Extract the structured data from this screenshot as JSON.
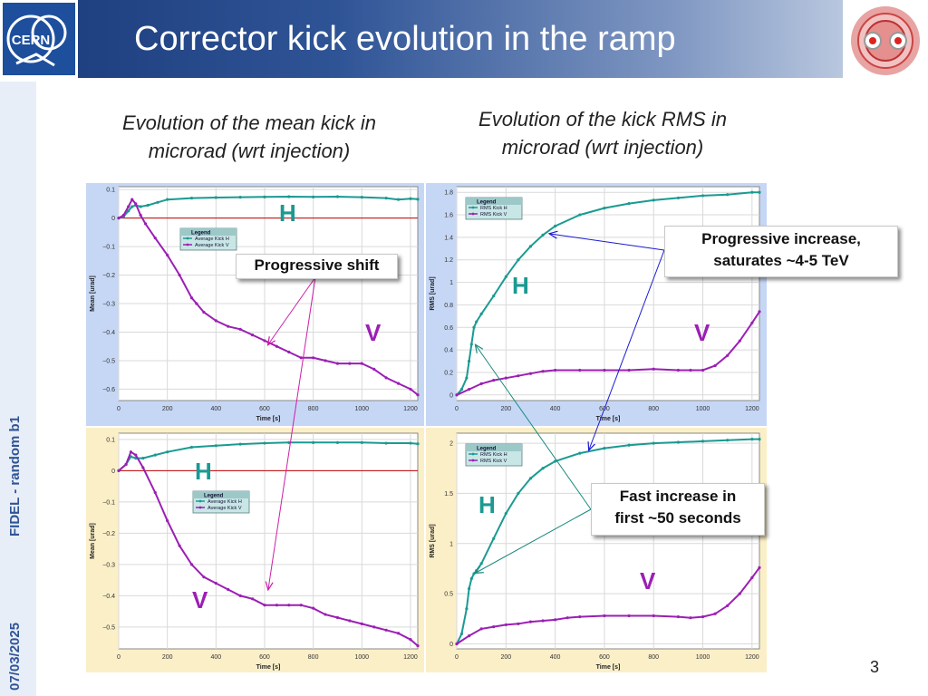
{
  "header": {
    "title": "Corrector kick evolution in the ramp"
  },
  "sidebar": {
    "date": "07/03/2025",
    "label": "FIDEL - random b1"
  },
  "captions": {
    "left": [
      "Evolution of the mean kick in",
      "microrad (wrt injection)"
    ],
    "right": [
      "Evolution of the kick RMS in",
      "microrad (wrt injection)"
    ]
  },
  "callouts": {
    "shift": "Progressive shift",
    "increase": [
      "Progressive increase,",
      "saturates ~4-5 TeV"
    ],
    "fast": [
      "Fast increase in",
      "first ~50 seconds"
    ]
  },
  "plane_labels": {
    "h": "H",
    "v": "V"
  },
  "page_number": "3",
  "colors": {
    "h_series": "#1a9a92",
    "v_series": "#9b1fb4",
    "blue_bg": "#c6d7f5",
    "yellow_bg": "#fbefc8",
    "zero_line": "#c00000"
  },
  "chart_data": [
    {
      "type": "line",
      "panel": "top-left",
      "xlabel": "Time [s]",
      "ylabel": "Mean [urad]",
      "xlim": [
        0,
        1230
      ],
      "ylim": [
        -0.64,
        0.11
      ],
      "xticks": [
        0,
        200,
        400,
        600,
        800,
        1000,
        1200
      ],
      "yticks": [
        0.1,
        0,
        -0.1,
        -0.2,
        -0.3,
        -0.4,
        -0.5,
        -0.6
      ],
      "ytick_labels": [
        "0.1",
        "0",
        "−0.1",
        "−0.2",
        "−0.3",
        "−0.4",
        "−0.5",
        "−0.6"
      ],
      "zero_line": true,
      "legend": {
        "title": "Legend",
        "position": "center-left"
      },
      "series": [
        {
          "name": "Average Kick H",
          "color": "h",
          "x": [
            0,
            20,
            40,
            55,
            70,
            90,
            120,
            160,
            200,
            300,
            400,
            500,
            600,
            700,
            800,
            900,
            1000,
            1100,
            1150,
            1200,
            1230
          ],
          "y": [
            0,
            0.005,
            0.025,
            0.04,
            0.045,
            0.04,
            0.045,
            0.055,
            0.065,
            0.07,
            0.072,
            0.073,
            0.074,
            0.075,
            0.074,
            0.075,
            0.073,
            0.07,
            0.065,
            0.068,
            0.066
          ]
        },
        {
          "name": "Average Kick V",
          "color": "v",
          "x": [
            0,
            20,
            40,
            55,
            70,
            90,
            110,
            150,
            200,
            250,
            300,
            320,
            350,
            400,
            450,
            500,
            550,
            600,
            650,
            700,
            750,
            800,
            850,
            900,
            950,
            1000,
            1050,
            1100,
            1150,
            1200,
            1230
          ],
          "y": [
            0,
            0.01,
            0.04,
            0.065,
            0.05,
            0.01,
            -0.02,
            -0.07,
            -0.13,
            -0.2,
            -0.28,
            -0.3,
            -0.33,
            -0.36,
            -0.38,
            -0.39,
            -0.41,
            -0.43,
            -0.45,
            -0.47,
            -0.49,
            -0.49,
            -0.5,
            -0.51,
            -0.51,
            -0.51,
            -0.53,
            -0.56,
            -0.58,
            -0.6,
            -0.62
          ]
        }
      ]
    },
    {
      "type": "line",
      "panel": "top-right",
      "xlabel": "Time [s]",
      "ylabel": "RMS [urad]",
      "xlim": [
        0,
        1230
      ],
      "ylim": [
        -0.05,
        1.85
      ],
      "xticks": [
        0,
        200,
        400,
        600,
        800,
        1000,
        1200
      ],
      "yticks": [
        0,
        0.2,
        0.4,
        0.6,
        0.8,
        1,
        1.2,
        1.4,
        1.6,
        1.8
      ],
      "ytick_labels": [
        "0",
        "0.2",
        "0.4",
        "0.6",
        "0.8",
        "1",
        "1.2",
        "1.4",
        "1.6",
        "1.8"
      ],
      "zero_line": false,
      "legend": {
        "title": "Legend",
        "position": "top-left"
      },
      "series": [
        {
          "name": "RMS Kick H",
          "color": "h",
          "x": [
            0,
            20,
            40,
            50,
            60,
            70,
            80,
            100,
            150,
            200,
            250,
            300,
            350,
            400,
            500,
            600,
            700,
            800,
            900,
            1000,
            1100,
            1200,
            1230
          ],
          "y": [
            0,
            0.05,
            0.15,
            0.3,
            0.45,
            0.6,
            0.65,
            0.72,
            0.88,
            1.05,
            1.2,
            1.32,
            1.42,
            1.5,
            1.6,
            1.66,
            1.7,
            1.73,
            1.75,
            1.77,
            1.78,
            1.8,
            1.8
          ]
        },
        {
          "name": "RMS Kick V",
          "color": "v",
          "x": [
            0,
            50,
            100,
            150,
            200,
            250,
            300,
            350,
            400,
            500,
            600,
            700,
            800,
            900,
            950,
            1000,
            1050,
            1100,
            1150,
            1200,
            1230
          ],
          "y": [
            0,
            0.05,
            0.1,
            0.13,
            0.15,
            0.17,
            0.19,
            0.21,
            0.22,
            0.22,
            0.22,
            0.22,
            0.23,
            0.22,
            0.22,
            0.22,
            0.26,
            0.35,
            0.48,
            0.64,
            0.74
          ]
        }
      ]
    },
    {
      "type": "line",
      "panel": "bottom-left",
      "xlabel": "Time [s]",
      "ylabel": "Mean [urad]",
      "xlim": [
        0,
        1230
      ],
      "ylim": [
        -0.57,
        0.12
      ],
      "xticks": [
        0,
        200,
        400,
        600,
        800,
        1000,
        1200
      ],
      "yticks": [
        0.1,
        0,
        -0.1,
        -0.2,
        -0.3,
        -0.4,
        -0.5
      ],
      "ytick_labels": [
        "0.1",
        "0",
        "−0.1",
        "−0.2",
        "−0.3",
        "−0.4",
        "−0.5"
      ],
      "zero_line": true,
      "legend": {
        "title": "Legend",
        "position": "center-left"
      },
      "series": [
        {
          "name": "Average Kick H",
          "color": "h",
          "x": [
            0,
            30,
            50,
            70,
            100,
            150,
            200,
            300,
            400,
            500,
            600,
            700,
            800,
            900,
            1000,
            1100,
            1200,
            1230
          ],
          "y": [
            0,
            0.02,
            0.045,
            0.04,
            0.04,
            0.05,
            0.06,
            0.075,
            0.08,
            0.085,
            0.088,
            0.09,
            0.09,
            0.09,
            0.09,
            0.088,
            0.088,
            0.086
          ]
        },
        {
          "name": "Average Kick V",
          "color": "v",
          "x": [
            0,
            30,
            50,
            70,
            100,
            150,
            200,
            250,
            300,
            350,
            400,
            450,
            500,
            550,
            600,
            650,
            700,
            750,
            800,
            850,
            900,
            950,
            1000,
            1050,
            1100,
            1150,
            1200,
            1230
          ],
          "y": [
            0,
            0.02,
            0.06,
            0.05,
            0.01,
            -0.07,
            -0.16,
            -0.24,
            -0.3,
            -0.34,
            -0.36,
            -0.38,
            -0.4,
            -0.41,
            -0.43,
            -0.43,
            -0.43,
            -0.43,
            -0.44,
            -0.46,
            -0.47,
            -0.48,
            -0.49,
            -0.5,
            -0.51,
            -0.52,
            -0.54,
            -0.56
          ]
        }
      ]
    },
    {
      "type": "line",
      "panel": "bottom-right",
      "xlabel": "Time [s]",
      "ylabel": "RMS [urad]",
      "xlim": [
        0,
        1230
      ],
      "ylim": [
        -0.05,
        2.1
      ],
      "xticks": [
        0,
        200,
        400,
        600,
        800,
        1000,
        1200
      ],
      "yticks": [
        0,
        0.5,
        1,
        1.5,
        2
      ],
      "ytick_labels": [
        "0",
        "0.5",
        "1",
        "1.5",
        "2"
      ],
      "zero_line": false,
      "legend": {
        "title": "Legend",
        "position": "top-left"
      },
      "series": [
        {
          "name": "RMS Kick H",
          "color": "h",
          "x": [
            0,
            20,
            40,
            50,
            60,
            70,
            80,
            100,
            150,
            200,
            250,
            300,
            350,
            400,
            500,
            600,
            700,
            800,
            900,
            1000,
            1100,
            1200,
            1230
          ],
          "y": [
            0,
            0.1,
            0.35,
            0.55,
            0.65,
            0.7,
            0.73,
            0.8,
            1.05,
            1.3,
            1.5,
            1.65,
            1.75,
            1.82,
            1.9,
            1.95,
            1.98,
            2.0,
            2.01,
            2.02,
            2.03,
            2.04,
            2.04
          ]
        },
        {
          "name": "RMS Kick V",
          "color": "v",
          "x": [
            0,
            50,
            100,
            150,
            200,
            250,
            300,
            350,
            400,
            450,
            500,
            600,
            700,
            800,
            900,
            950,
            1000,
            1050,
            1100,
            1150,
            1200,
            1230
          ],
          "y": [
            0,
            0.08,
            0.15,
            0.17,
            0.19,
            0.2,
            0.22,
            0.23,
            0.24,
            0.26,
            0.27,
            0.28,
            0.28,
            0.28,
            0.27,
            0.26,
            0.27,
            0.3,
            0.38,
            0.5,
            0.66,
            0.76
          ]
        }
      ]
    }
  ]
}
